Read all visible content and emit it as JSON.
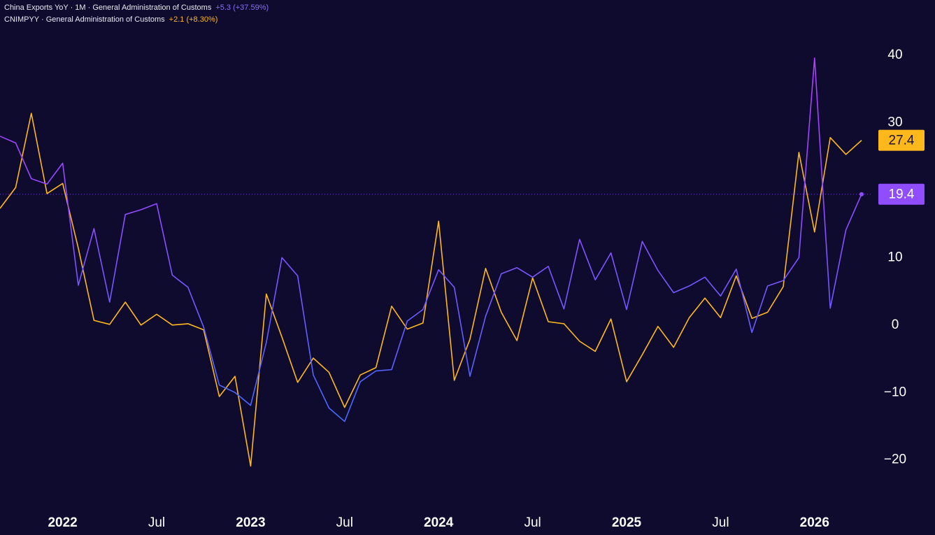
{
  "chart_data": {
    "type": "line",
    "x": [
      "2021-09",
      "2021-10",
      "2021-11",
      "2021-12",
      "2022-01",
      "2022-02",
      "2022-03",
      "2022-04",
      "2022-05",
      "2022-06",
      "2022-07",
      "2022-08",
      "2022-09",
      "2022-10",
      "2022-11",
      "2022-12",
      "2023-01",
      "2023-02",
      "2023-03",
      "2023-04",
      "2023-05",
      "2023-06",
      "2023-07",
      "2023-08",
      "2023-09",
      "2023-10",
      "2023-11",
      "2023-12",
      "2024-01",
      "2024-02",
      "2024-03",
      "2024-04",
      "2024-05",
      "2024-06",
      "2024-07",
      "2024-08",
      "2024-09",
      "2024-10",
      "2024-11",
      "2024-12",
      "2025-01",
      "2025-02",
      "2025-03",
      "2025-04",
      "2025-05",
      "2025-06",
      "2025-07",
      "2025-08",
      "2025-09",
      "2025-10",
      "2025-11",
      "2025-12",
      "2026-01",
      "2026-02",
      "2026-03",
      "2026-04"
    ],
    "series": [
      {
        "name": "China Exports YoY · 1M · General Administration of Customs",
        "change_label": "+5.3 (+37.59%)",
        "color": "#9b45ff",
        "values": [
          28.0,
          27.0,
          21.7,
          20.9,
          24.0,
          5.9,
          14.3,
          3.4,
          16.4,
          17.1,
          18.0,
          7.4,
          5.6,
          -0.3,
          -8.9,
          -10.0,
          -11.9,
          -2.6,
          10.0,
          7.3,
          -7.4,
          -12.3,
          -14.3,
          -8.4,
          -6.8,
          -6.6,
          0.6,
          2.3,
          8.2,
          5.6,
          -7.6,
          1.3,
          7.6,
          8.5,
          7.1,
          8.7,
          2.4,
          12.7,
          6.7,
          10.7,
          2.3,
          12.4,
          8.1,
          4.8,
          5.8,
          7.1,
          4.3,
          8.3,
          -1.1,
          5.8,
          6.6,
          10.0,
          39.6,
          2.5,
          14.1,
          19.4
        ]
      },
      {
        "name": "CNIMPYY · General Administration of Customs",
        "change_label": "+2.1 (+8.30%)",
        "color": "#ffb81c",
        "values": [
          17.3,
          20.4,
          31.4,
          19.5,
          21.0,
          11.4,
          0.7,
          0.1,
          3.4,
          0.0,
          1.6,
          0.0,
          0.2,
          -0.7,
          -10.6,
          -7.6,
          -20.9,
          4.6,
          -1.8,
          -8.5,
          -4.9,
          -7.0,
          -12.2,
          -7.4,
          -6.3,
          2.8,
          -0.6,
          0.3,
          15.4,
          -8.2,
          -2.1,
          8.4,
          1.9,
          -2.3,
          7.0,
          0.5,
          0.2,
          -2.4,
          -3.9,
          0.9,
          -8.4,
          -4.4,
          -0.2,
          -3.3,
          1.1,
          4.0,
          1.1,
          7.3,
          1.0,
          1.9,
          5.7,
          25.6,
          13.8,
          27.8,
          25.3,
          27.4
        ]
      }
    ],
    "ylim": [
      -27.5,
      48.2
    ],
    "yticks": [
      {
        "value": -20,
        "label": "−20"
      },
      {
        "value": -10,
        "label": "−10"
      },
      0,
      10,
      30,
      40
    ],
    "xticks": [
      {
        "value": "2022-01",
        "label": "2022"
      },
      {
        "value": "2022-07",
        "label": "Jul"
      },
      {
        "value": "2023-01",
        "label": "2023"
      },
      {
        "value": "2023-07",
        "label": "Jul"
      },
      {
        "value": "2024-01",
        "label": "2024"
      },
      {
        "value": "2024-07",
        "label": "Jul"
      },
      {
        "value": "2025-01",
        "label": "2025"
      },
      {
        "value": "2025-07",
        "label": "Jul"
      },
      {
        "value": "2026-01",
        "label": "2026"
      }
    ],
    "grid": false
  }
}
